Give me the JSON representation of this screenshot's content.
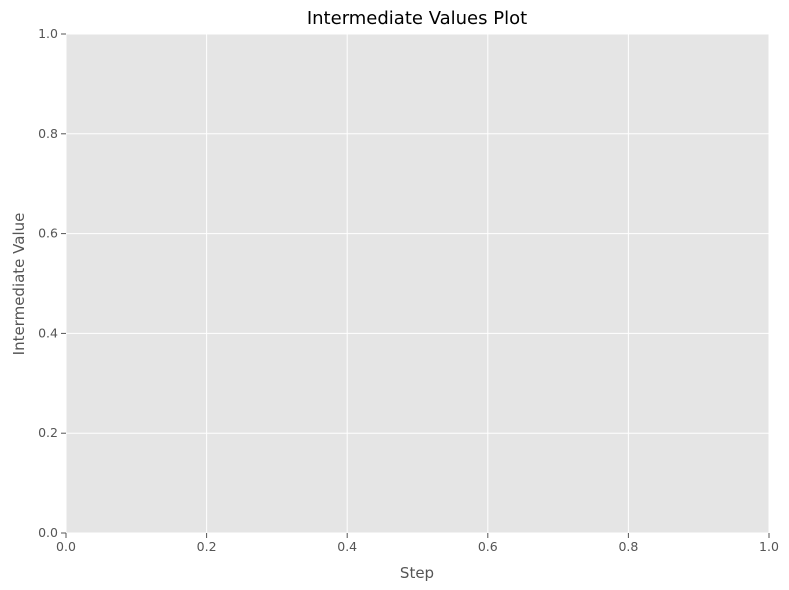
{
  "chart_data": {
    "type": "line",
    "title": "Intermediate Values Plot",
    "xlabel": "Step",
    "ylabel": "Intermediate Value",
    "xlim": [
      0,
      1
    ],
    "ylim": [
      0,
      1
    ],
    "xticks": [
      "0.0",
      "0.2",
      "0.4",
      "0.6",
      "0.8",
      "1.0"
    ],
    "yticks": [
      "0.0",
      "0.2",
      "0.4",
      "0.6",
      "0.8",
      "1.0"
    ],
    "series": [],
    "grid": true,
    "legend": "none",
    "colors": {
      "plot_background": "#e5e5e5",
      "grid": "#ffffff",
      "tick_text": "#555555",
      "title_text": "#000000"
    }
  }
}
